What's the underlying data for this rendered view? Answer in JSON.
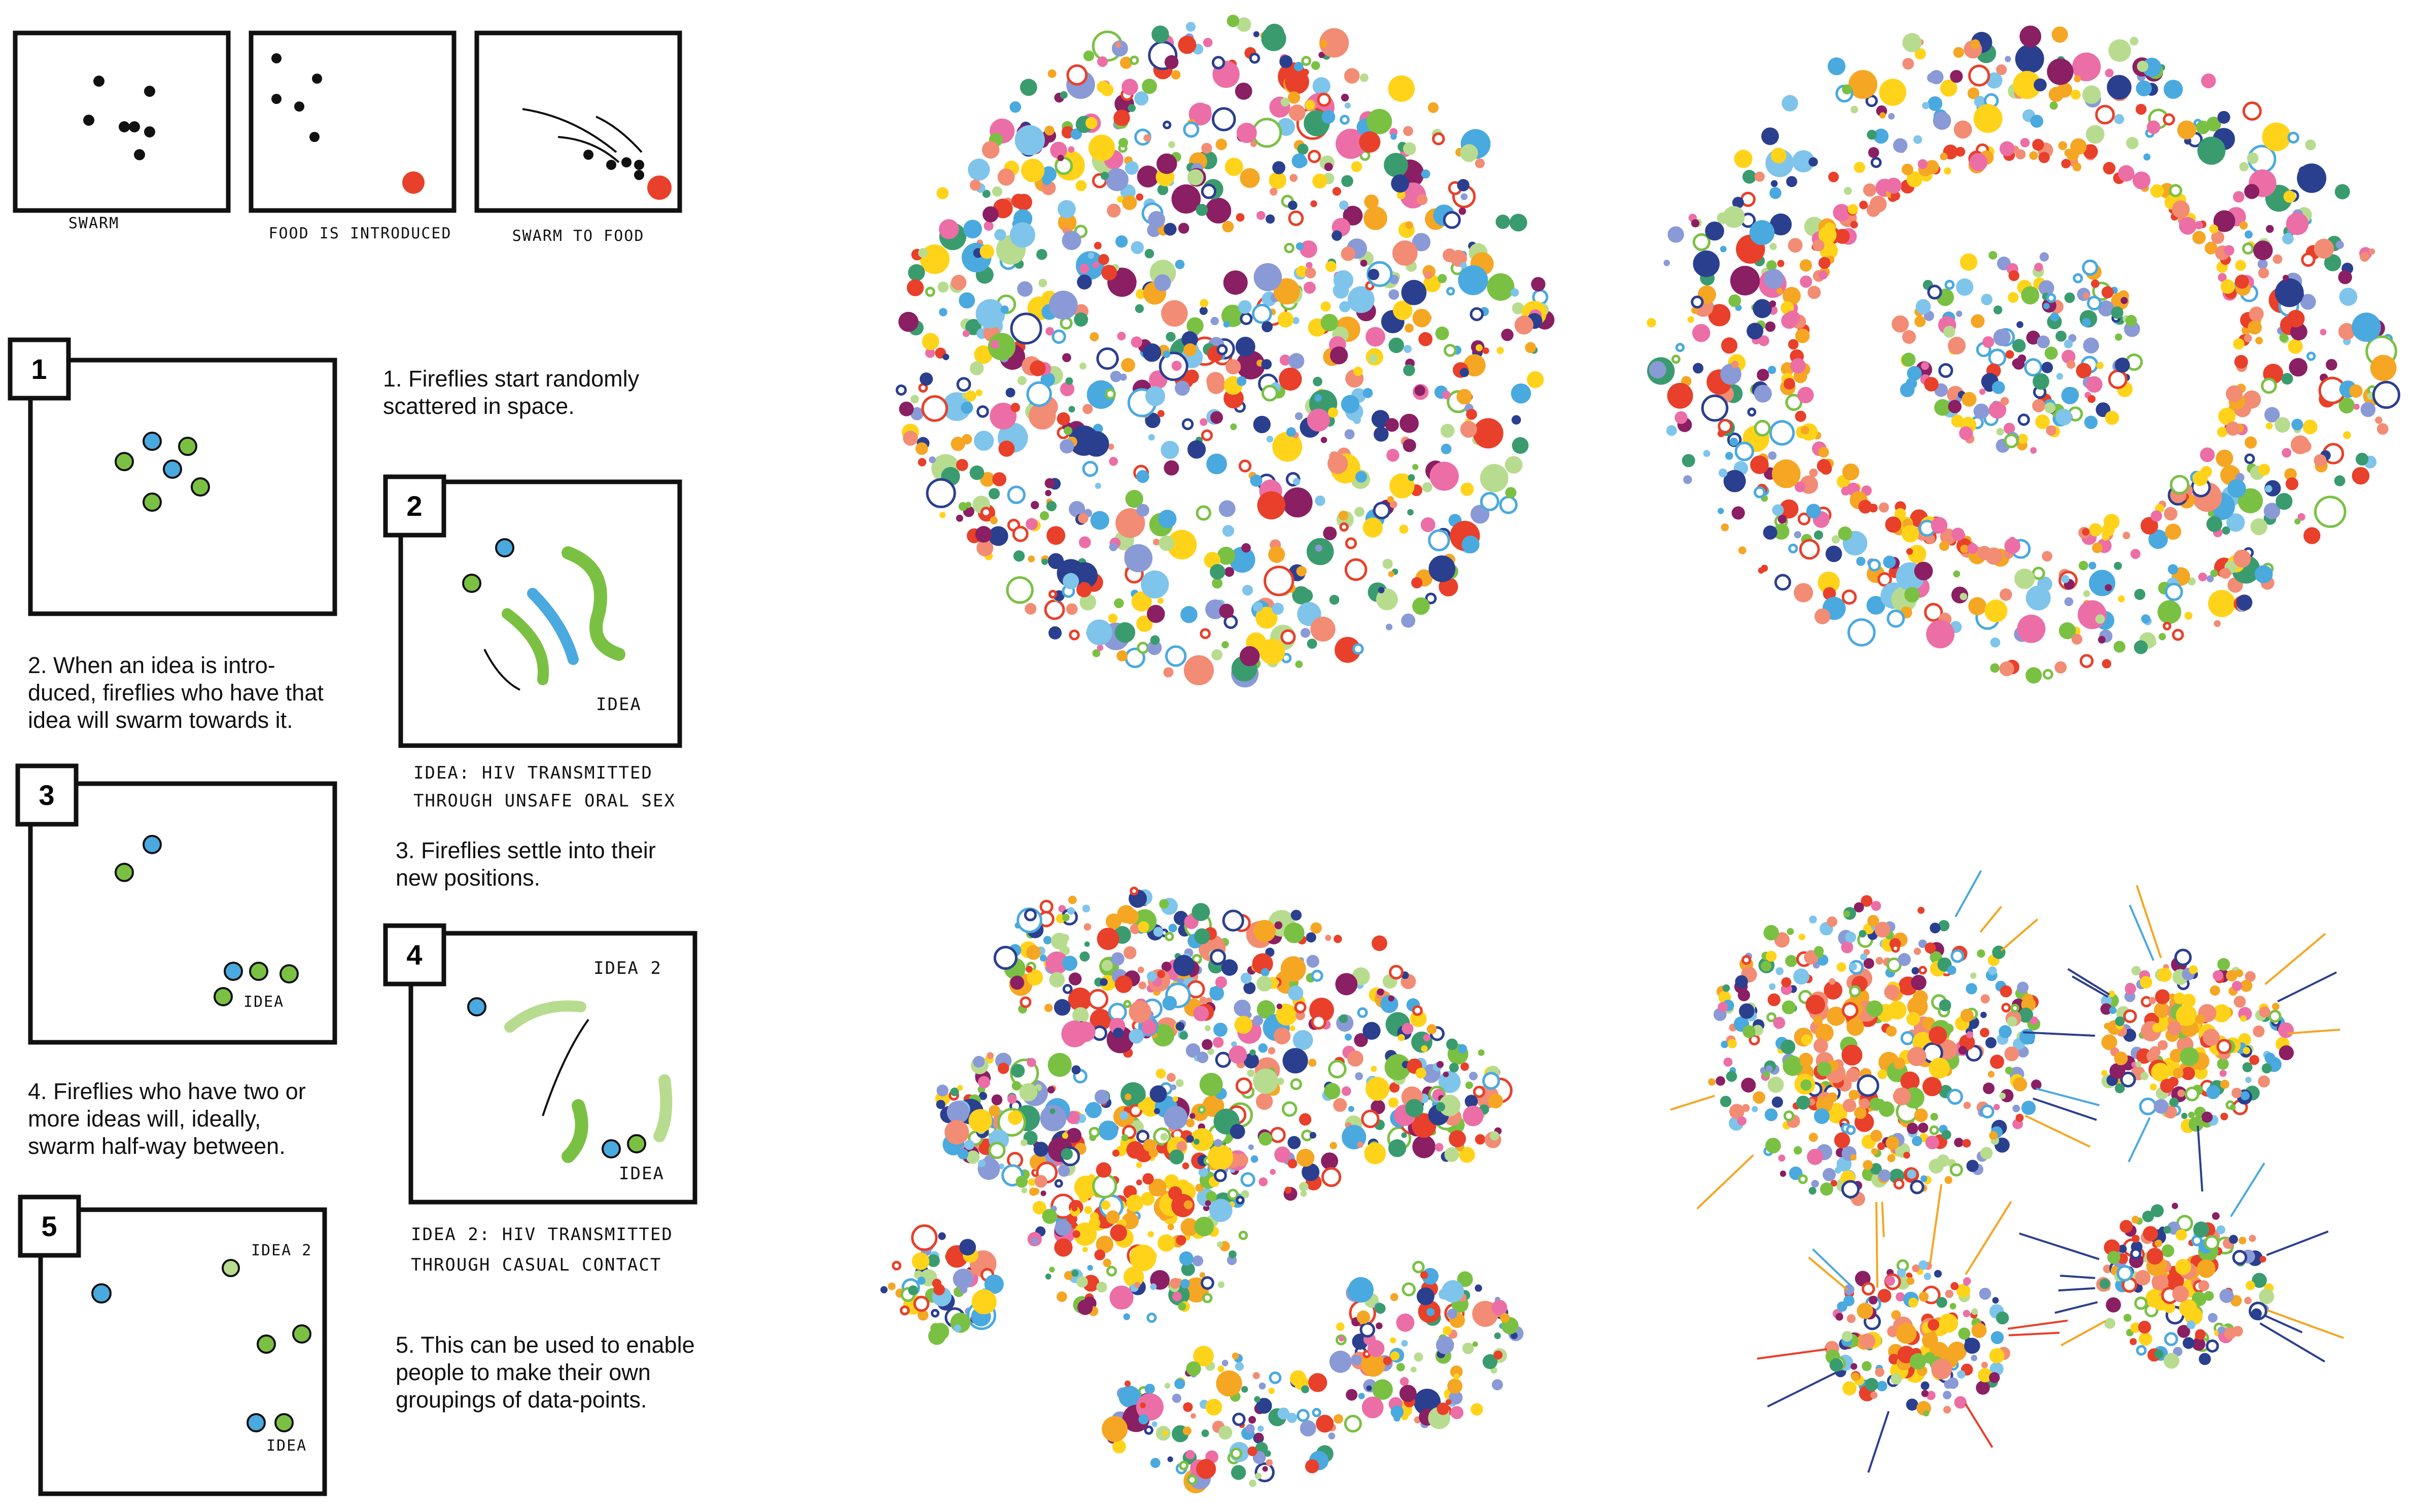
{
  "top_panels": [
    {
      "label": "SWARM"
    },
    {
      "label": "FOOD IS INTRODUCED"
    },
    {
      "label": "SWARM TO FOOD"
    }
  ],
  "steps": [
    {
      "number": "1",
      "caption": "1. Fireflies start randomly\nscattered in space."
    },
    {
      "number": "2",
      "caption": "2. When an idea is intro-\nduced, fireflies who have that\nidea will swarm towards it."
    },
    {
      "number": "3",
      "caption": "3. Fireflies settle into their\nnew positions."
    },
    {
      "number": "4",
      "caption": "4. Fireflies who have two or\nmore ideas will, ideally,\nswarm half-way between."
    },
    {
      "number": "5",
      "caption": "5. This can be used to enable\npeople to make their own\ngroupings of data-points."
    }
  ],
  "sketch_labels": {
    "idea": "IDEA",
    "idea2": "IDEA 2",
    "idea_caption_line1": "IDEA: HIV TRANSMITTED",
    "idea_caption_line2": "THROUGH UNSAFE ORAL SEX",
    "idea2_caption_line1": "IDEA 2: HIV TRANSMITTED",
    "idea2_caption_line2": "THROUGH CASUAL CONTACT"
  },
  "colors": {
    "red": "#e8402a",
    "green": "#7ac143",
    "blue": "#4aa9df",
    "yellow": "#ffd31a",
    "navy": "#2b3f8f",
    "dot_palette": [
      "#ffd31a",
      "#f5a623",
      "#e8402a",
      "#f28c74",
      "#4aa9df",
      "#7fc4ea",
      "#2b3f8f",
      "#8a9ad6",
      "#7ac143",
      "#b8dc8f",
      "#3a9c6e",
      "#ec6ea6",
      "#8a1f63",
      "#ffffff"
    ]
  }
}
